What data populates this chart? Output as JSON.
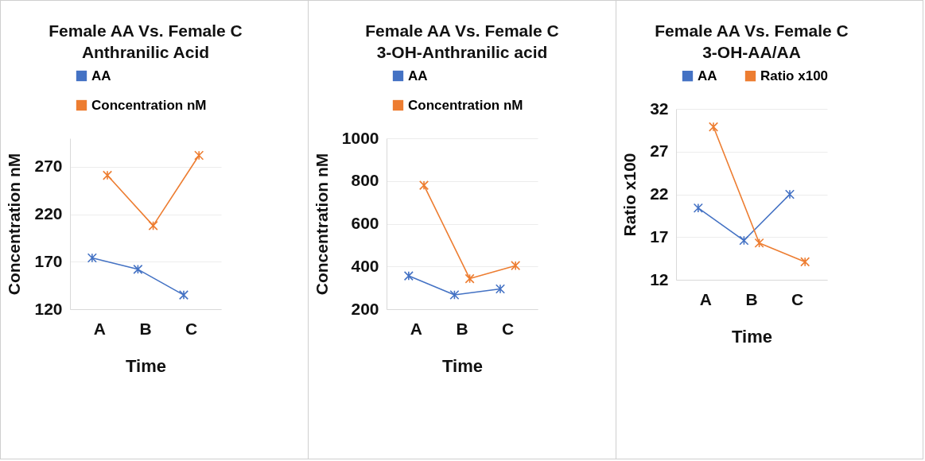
{
  "chart_data": [
    {
      "type": "line",
      "title": "Female AA Vs. Female C",
      "subtitle": "Anthranilic Acid",
      "xlabel": "Time",
      "ylabel": "Concentration nM",
      "categories": [
        "A",
        "B",
        "C"
      ],
      "series": [
        {
          "name": "AA",
          "color": "#4472c4",
          "values": [
            174,
            162,
            135
          ]
        },
        {
          "name": "Concentration nM",
          "color": "#ed7d31",
          "values": [
            261,
            208,
            282
          ]
        }
      ],
      "ylim": [
        120,
        300
      ],
      "yticks": [
        120,
        170,
        220,
        270
      ],
      "grid": "y",
      "legend": "top",
      "marker": "cross",
      "line_style": "solid"
    },
    {
      "type": "line",
      "title": "Female AA Vs. Female C",
      "subtitle": "3-OH-Anthranilic acid",
      "xlabel": "Time",
      "ylabel": "Concentration nM",
      "categories": [
        "A",
        "B",
        "C"
      ],
      "series": [
        {
          "name": "AA",
          "color": "#4472c4",
          "values": [
            356,
            267,
            295
          ]
        },
        {
          "name": "Concentration nM",
          "color": "#ed7d31",
          "values": [
            780,
            343,
            404
          ]
        }
      ],
      "ylim": [
        200,
        1000
      ],
      "yticks": [
        200,
        400,
        600,
        800,
        1000
      ],
      "grid": "y",
      "legend": "top",
      "marker": "cross",
      "line_style": "solid"
    },
    {
      "type": "line",
      "title": "Female AA Vs. Female C",
      "subtitle": "3-OH-AA/AA",
      "xlabel": "Time",
      "ylabel": "Ratio x100",
      "categories": [
        "A",
        "B",
        "C"
      ],
      "series": [
        {
          "name": "AA",
          "color": "#4472c4",
          "values": [
            20.4,
            16.6,
            22.0
          ]
        },
        {
          "name": "Ratio x100",
          "color": "#ed7d31",
          "values": [
            29.9,
            16.3,
            14.1
          ]
        }
      ],
      "ylim": [
        12,
        32
      ],
      "yticks": [
        12,
        17,
        22,
        27,
        32
      ],
      "grid": "y",
      "legend": "top",
      "marker": "cross",
      "line_style": "solid"
    }
  ]
}
